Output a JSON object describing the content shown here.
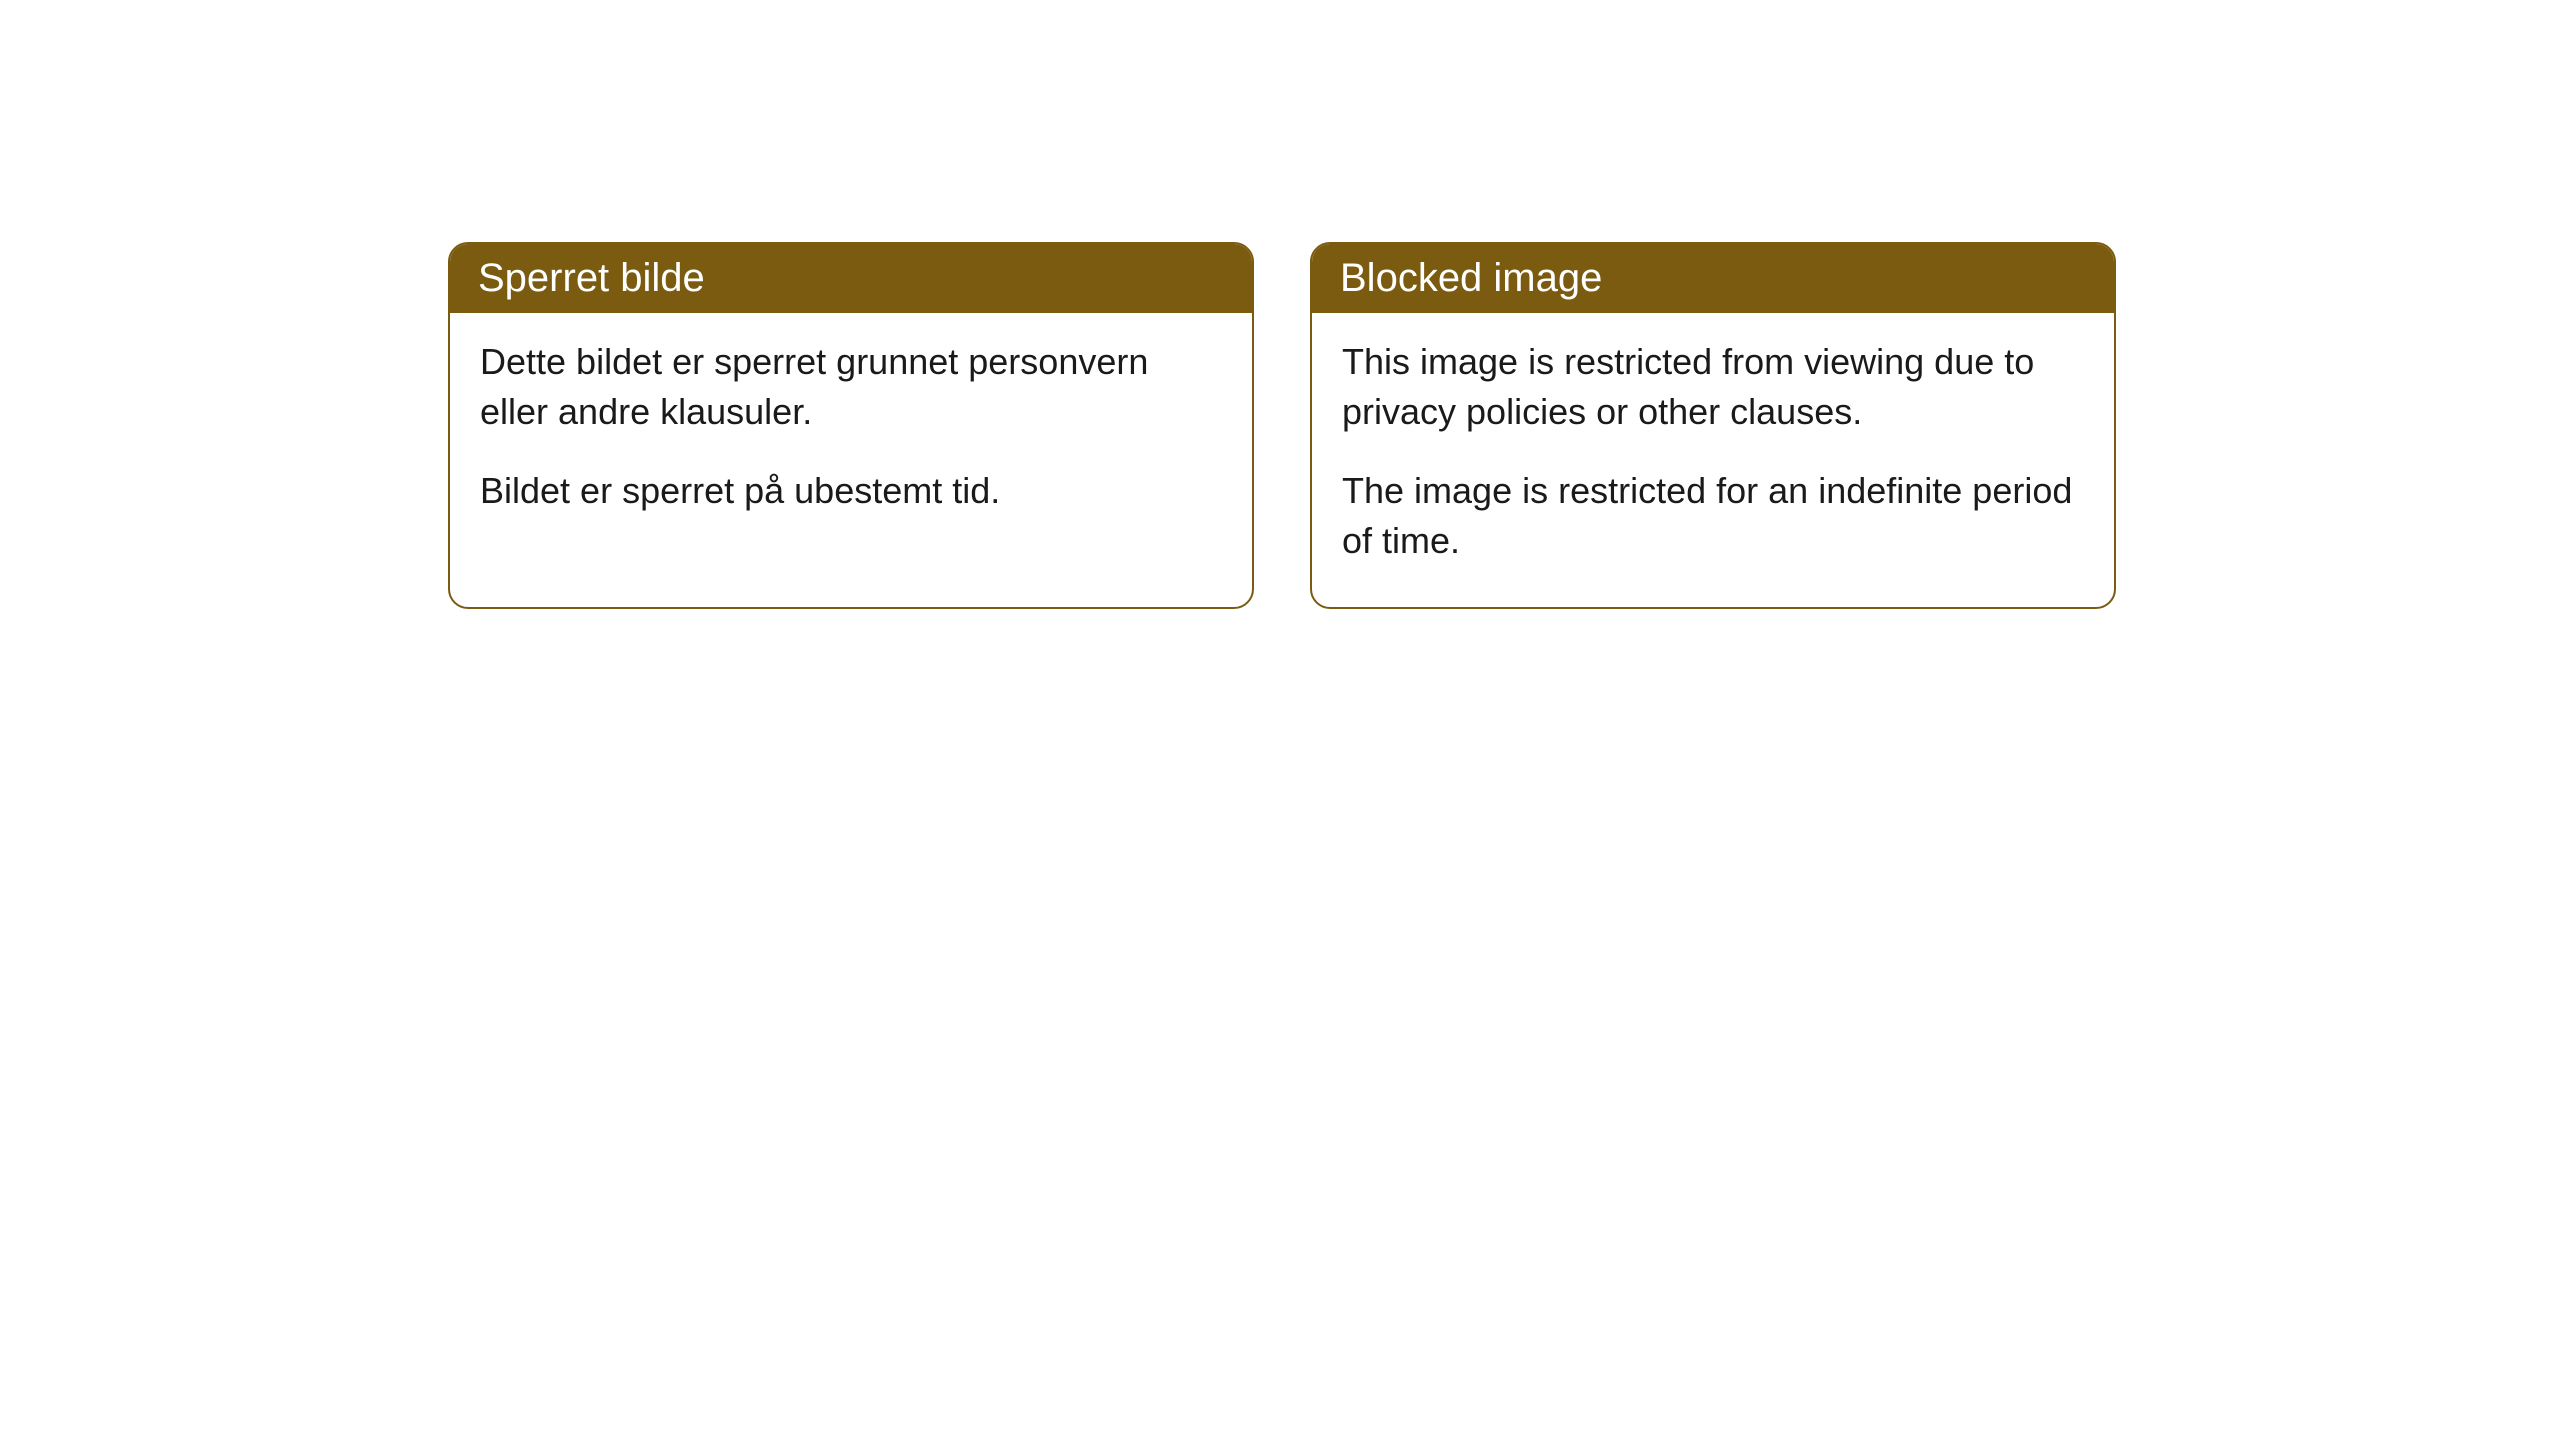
{
  "cards": {
    "left": {
      "title": "Sperret bilde",
      "paragraph1": "Dette bildet er sperret grunnet personvern eller andre klausuler.",
      "paragraph2": "Bildet er sperret på ubestemt tid."
    },
    "right": {
      "title": "Blocked image",
      "paragraph1": "This image is restricted from viewing due to privacy policies or other clauses.",
      "paragraph2": "The image is restricted for an indefinite period of time."
    }
  },
  "style": {
    "header_bg_color": "#7a5b10",
    "header_text_color": "#ffffff",
    "border_color": "#7a5b10",
    "body_bg_color": "#ffffff",
    "body_text_color": "#1a1a1a",
    "border_radius": 20,
    "title_fontsize": 40,
    "body_fontsize": 36
  }
}
